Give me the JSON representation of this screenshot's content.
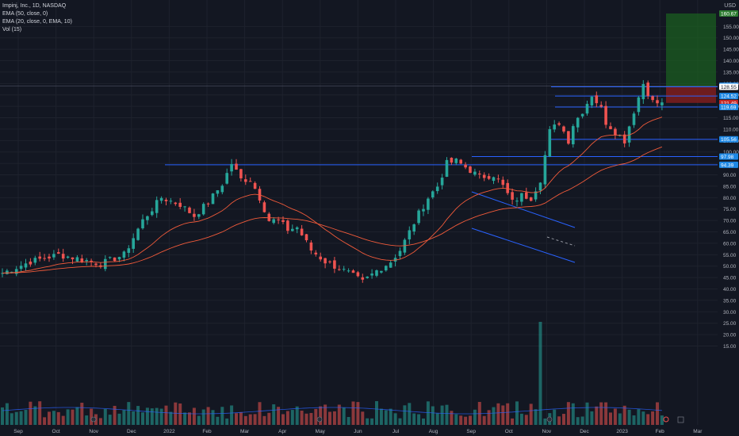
{
  "legend": {
    "symbol": "Impinj, Inc., 1D, NASDAQ",
    "ema50": "EMA (50, close, 0)",
    "ema20": "EMA (20, close, 0, EMA, 10)",
    "vol": "Vol (15)"
  },
  "currency": "USD",
  "colors": {
    "background": "#131722",
    "grid": "#1e222d",
    "up": "#26a69a",
    "down": "#ef5350",
    "ema": "#f05a3a",
    "trendline": "#2962ff",
    "label": "#1e88e5",
    "target": "#1b5e20",
    "stop": "#7f1d1d"
  },
  "chart_data": {
    "type": "candlestick",
    "x_axis_labels": [
      "Sep",
      "Oct",
      "Nov",
      "Dec",
      "2022",
      "Feb",
      "Mar",
      "Apr",
      "May",
      "Jun",
      "Jul",
      "Aug",
      "Sep",
      "Oct",
      "Nov",
      "Dec",
      "2023",
      "Feb",
      "Mar"
    ],
    "y_ticks": [
      15,
      20,
      25,
      30,
      35,
      40,
      45,
      50,
      55,
      60,
      65,
      70,
      75,
      80,
      85,
      90,
      95,
      100,
      105,
      110,
      115,
      120,
      125,
      130,
      135,
      140,
      145,
      150,
      155
    ],
    "y_range": [
      15,
      160.67
    ],
    "price_keypoints": [
      [
        0,
        47
      ],
      [
        6,
        52
      ],
      [
        12,
        55
      ],
      [
        17,
        53
      ],
      [
        21,
        51
      ],
      [
        26,
        55
      ],
      [
        30,
        70
      ],
      [
        34,
        80
      ],
      [
        38,
        77
      ],
      [
        41,
        72
      ],
      [
        44,
        78
      ],
      [
        47,
        86
      ],
      [
        49,
        95
      ],
      [
        51,
        88
      ],
      [
        53,
        88
      ],
      [
        55,
        80
      ],
      [
        57,
        70
      ],
      [
        59,
        70
      ],
      [
        61,
        66
      ],
      [
        63,
        67
      ],
      [
        66,
        57
      ],
      [
        69,
        52
      ],
      [
        71,
        50
      ],
      [
        74,
        47
      ],
      [
        77,
        43
      ],
      [
        80,
        48
      ],
      [
        83,
        52
      ],
      [
        85,
        57
      ],
      [
        87,
        65
      ],
      [
        89,
        73
      ],
      [
        91,
        80
      ],
      [
        93,
        85
      ],
      [
        95,
        95
      ],
      [
        97,
        96
      ],
      [
        100,
        92
      ],
      [
        102,
        89
      ],
      [
        105,
        90
      ],
      [
        107,
        85
      ],
      [
        109,
        78
      ],
      [
        111,
        81
      ],
      [
        113,
        80
      ],
      [
        115,
        88
      ],
      [
        117,
        109
      ],
      [
        119,
        113
      ],
      [
        121,
        105
      ],
      [
        122,
        112
      ],
      [
        124,
        118
      ],
      [
        126,
        125
      ],
      [
        128,
        119
      ],
      [
        129,
        113
      ],
      [
        131,
        109
      ],
      [
        133,
        105
      ],
      [
        135,
        118
      ],
      [
        137,
        130
      ],
      [
        139,
        122
      ],
      [
        141,
        121
      ]
    ],
    "volume_spike_index": 115,
    "horizontal_levels": [
      {
        "price": 128.55,
        "label": "128.55"
      },
      {
        "price": 124.52,
        "label": "124.52"
      },
      {
        "price": 119.69,
        "label": "119.69"
      },
      {
        "price": 105.56,
        "label": "105.56"
      },
      {
        "price": 97.98,
        "label": "97.98"
      },
      {
        "price": 94.39,
        "label": "94.39"
      }
    ],
    "price_labels": [
      {
        "price": 160.67,
        "label": "160.67"
      },
      {
        "price": 129.02,
        "label": "129.02"
      },
      {
        "price": 128.55,
        "label": "128.55"
      },
      {
        "price": 124.52,
        "label": "124.52"
      },
      {
        "price": 121.49,
        "label": "121.49"
      },
      {
        "price": 119.69,
        "label": "119.69"
      },
      {
        "price": 105.56,
        "label": "105.56"
      },
      {
        "price": 97.98,
        "label": "97.98"
      },
      {
        "price": 94.39,
        "label": "94.39"
      }
    ],
    "long_position": {
      "entry": 128.55,
      "target": 160.67,
      "stop": 121.49
    }
  }
}
